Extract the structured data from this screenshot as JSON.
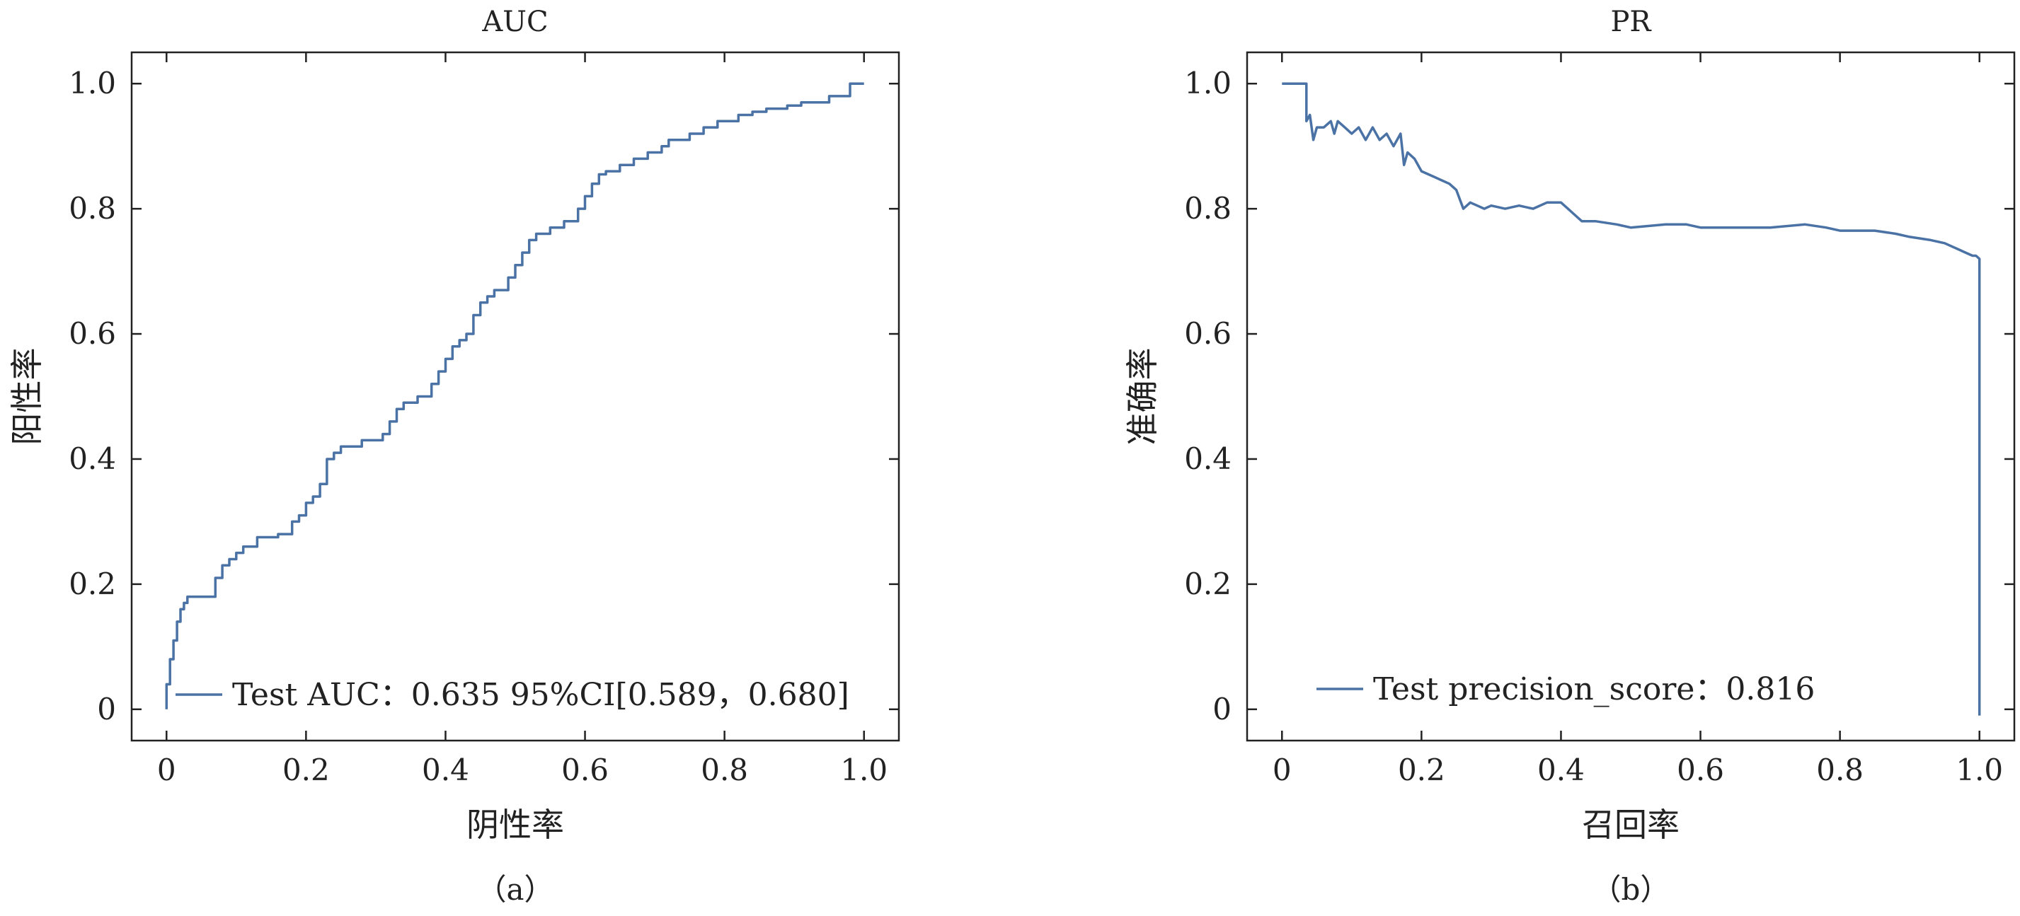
{
  "line_color": "#4a72a5",
  "chart_data": [
    {
      "type": "line",
      "title": "AUC",
      "caption": "（a）",
      "xlabel": "阴性率",
      "ylabel": "阳性率",
      "xlim": [
        -0.05,
        1.05
      ],
      "ylim": [
        -0.05,
        1.05
      ],
      "xticks": [
        0,
        0.2,
        0.4,
        0.6,
        0.8,
        1.0
      ],
      "xtick_labels": [
        "0",
        "0.2",
        "0.4",
        "0.6",
        "0.8",
        "1.0"
      ],
      "yticks": [
        0,
        0.2,
        0.4,
        0.6,
        0.8,
        1.0
      ],
      "ytick_labels": [
        "0",
        "0.2",
        "0.4",
        "0.6",
        "0.8",
        "1.0"
      ],
      "grid": false,
      "legend_position": "lower-right",
      "series": [
        {
          "name": "Test AUC：0.635 95%CI[0.589，0.680]",
          "x": [
            0,
            0,
            0.005,
            0.005,
            0.01,
            0.01,
            0.015,
            0.015,
            0.02,
            0.02,
            0.025,
            0.025,
            0.03,
            0.03,
            0.04,
            0.04,
            0.07,
            0.07,
            0.08,
            0.08,
            0.09,
            0.09,
            0.1,
            0.1,
            0.11,
            0.11,
            0.13,
            0.13,
            0.16,
            0.16,
            0.18,
            0.18,
            0.19,
            0.19,
            0.2,
            0.2,
            0.21,
            0.21,
            0.22,
            0.22,
            0.23,
            0.23,
            0.24,
            0.24,
            0.25,
            0.25,
            0.28,
            0.28,
            0.31,
            0.31,
            0.32,
            0.32,
            0.33,
            0.33,
            0.34,
            0.34,
            0.36,
            0.36,
            0.38,
            0.38,
            0.39,
            0.39,
            0.4,
            0.4,
            0.41,
            0.41,
            0.42,
            0.42,
            0.43,
            0.43,
            0.44,
            0.44,
            0.45,
            0.45,
            0.46,
            0.46,
            0.47,
            0.47,
            0.49,
            0.49,
            0.5,
            0.5,
            0.51,
            0.51,
            0.52,
            0.52,
            0.53,
            0.53,
            0.55,
            0.55,
            0.57,
            0.57,
            0.59,
            0.59,
            0.6,
            0.6,
            0.61,
            0.61,
            0.62,
            0.62,
            0.63,
            0.63,
            0.65,
            0.65,
            0.67,
            0.67,
            0.69,
            0.69,
            0.71,
            0.71,
            0.72,
            0.72,
            0.75,
            0.75,
            0.77,
            0.77,
            0.79,
            0.79,
            0.82,
            0.82,
            0.84,
            0.84,
            0.86,
            0.86,
            0.89,
            0.89,
            0.91,
            0.91,
            0.95,
            0.95,
            0.98,
            0.98,
            1.0
          ],
          "y": [
            0,
            0.04,
            0.04,
            0.08,
            0.08,
            0.11,
            0.11,
            0.14,
            0.14,
            0.16,
            0.16,
            0.17,
            0.17,
            0.18,
            0.18,
            0.18,
            0.18,
            0.21,
            0.21,
            0.23,
            0.23,
            0.24,
            0.24,
            0.25,
            0.25,
            0.26,
            0.26,
            0.275,
            0.275,
            0.28,
            0.28,
            0.3,
            0.3,
            0.31,
            0.31,
            0.33,
            0.33,
            0.34,
            0.34,
            0.36,
            0.36,
            0.4,
            0.4,
            0.41,
            0.41,
            0.42,
            0.42,
            0.43,
            0.43,
            0.44,
            0.44,
            0.46,
            0.46,
            0.48,
            0.48,
            0.49,
            0.49,
            0.5,
            0.5,
            0.52,
            0.52,
            0.54,
            0.54,
            0.56,
            0.56,
            0.58,
            0.58,
            0.59,
            0.59,
            0.6,
            0.6,
            0.63,
            0.63,
            0.65,
            0.65,
            0.66,
            0.66,
            0.67,
            0.67,
            0.69,
            0.69,
            0.71,
            0.71,
            0.73,
            0.73,
            0.75,
            0.75,
            0.76,
            0.76,
            0.77,
            0.77,
            0.78,
            0.78,
            0.8,
            0.8,
            0.82,
            0.82,
            0.84,
            0.84,
            0.855,
            0.855,
            0.86,
            0.86,
            0.87,
            0.87,
            0.88,
            0.88,
            0.89,
            0.89,
            0.9,
            0.9,
            0.91,
            0.91,
            0.92,
            0.92,
            0.93,
            0.93,
            0.94,
            0.94,
            0.95,
            0.95,
            0.955,
            0.955,
            0.96,
            0.96,
            0.965,
            0.965,
            0.97,
            0.97,
            0.98,
            0.98,
            1.0,
            1.0
          ]
        }
      ]
    },
    {
      "type": "line",
      "title": "PR",
      "caption": "（b）",
      "xlabel": "召回率",
      "ylabel": "准确率",
      "xlim": [
        -0.05,
        1.05
      ],
      "ylim": [
        -0.05,
        1.05
      ],
      "xticks": [
        0,
        0.2,
        0.4,
        0.6,
        0.8,
        1.0
      ],
      "xtick_labels": [
        "0",
        "0.2",
        "0.4",
        "0.6",
        "0.8",
        "1.0"
      ],
      "yticks": [
        0,
        0.2,
        0.4,
        0.6,
        0.8,
        1.0
      ],
      "ytick_labels": [
        "0",
        "0.2",
        "0.4",
        "0.6",
        "0.8",
        "1.0"
      ],
      "grid": false,
      "legend_position": "lower-center",
      "series": [
        {
          "name": "Test precision_score：0.816",
          "x": [
            0,
            0.035,
            0.035,
            0.04,
            0.045,
            0.05,
            0.06,
            0.07,
            0.075,
            0.08,
            0.09,
            0.1,
            0.11,
            0.12,
            0.13,
            0.14,
            0.15,
            0.16,
            0.17,
            0.175,
            0.18,
            0.19,
            0.2,
            0.22,
            0.24,
            0.25,
            0.26,
            0.27,
            0.28,
            0.29,
            0.3,
            0.32,
            0.34,
            0.36,
            0.38,
            0.4,
            0.41,
            0.42,
            0.43,
            0.45,
            0.48,
            0.5,
            0.55,
            0.58,
            0.6,
            0.65,
            0.7,
            0.75,
            0.78,
            0.8,
            0.85,
            0.88,
            0.9,
            0.93,
            0.95,
            0.97,
            0.98,
            0.99,
            0.995,
            1.0,
            1.0
          ],
          "y": [
            1.0,
            1.0,
            0.94,
            0.95,
            0.91,
            0.93,
            0.93,
            0.94,
            0.92,
            0.94,
            0.93,
            0.92,
            0.93,
            0.91,
            0.93,
            0.91,
            0.92,
            0.9,
            0.92,
            0.87,
            0.89,
            0.88,
            0.86,
            0.85,
            0.84,
            0.83,
            0.8,
            0.81,
            0.805,
            0.8,
            0.805,
            0.8,
            0.805,
            0.8,
            0.81,
            0.81,
            0.8,
            0.79,
            0.78,
            0.78,
            0.775,
            0.77,
            0.775,
            0.775,
            0.77,
            0.77,
            0.77,
            0.775,
            0.77,
            0.765,
            0.765,
            0.76,
            0.755,
            0.75,
            0.745,
            0.735,
            0.73,
            0.725,
            0.725,
            0.72,
            -0.01
          ]
        }
      ]
    }
  ]
}
